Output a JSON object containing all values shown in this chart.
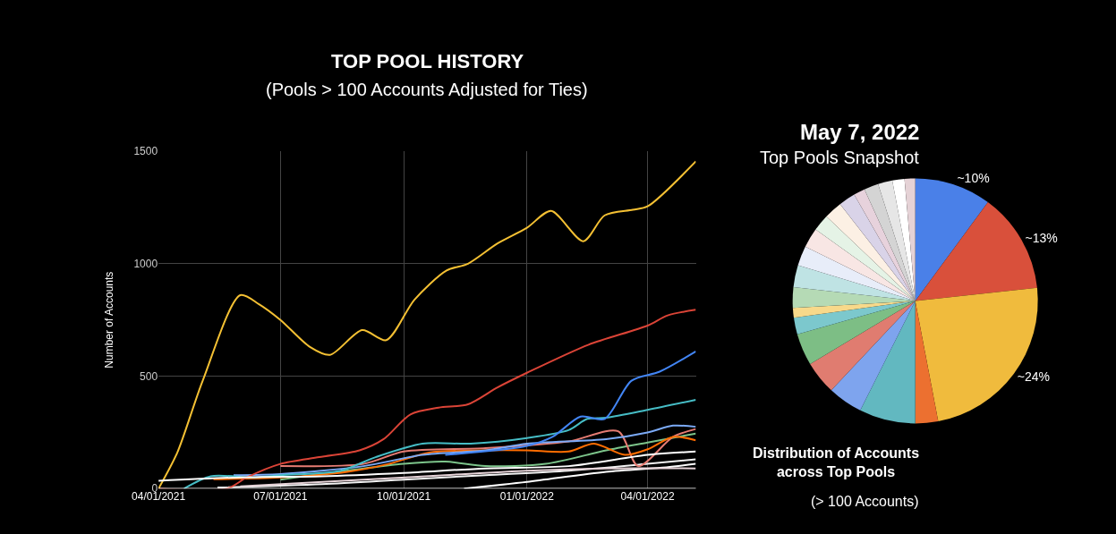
{
  "chart_data": [
    {
      "type": "line",
      "title": "TOP POOL HISTORY",
      "subtitle": "(Pools > 100 Accounts Adjusted for Ties)",
      "ylabel": "Number of Accounts",
      "xlim": [
        "2021-04-01",
        "2022-05-07"
      ],
      "xticks": [
        {
          "value": "2021-04-01",
          "label": "04/01/2021"
        },
        {
          "value": "2021-07-01",
          "label": "07/01/2021"
        },
        {
          "value": "2021-10-01",
          "label": "10/01/2021"
        },
        {
          "value": "2022-01-01",
          "label": "01/01/2022"
        },
        {
          "value": "2022-04-01",
          "label": "04/01/2022"
        }
      ],
      "ylim": [
        0,
        1500
      ],
      "yticks": [
        0,
        500,
        1000,
        1500
      ],
      "grid": true,
      "series": [
        {
          "color": "#f3f3f3",
          "x": [
            "2021-05-15",
            "2021-08-01",
            "2021-10-01",
            "2021-12-01",
            "2022-02-01",
            "2022-04-01",
            "2022-05-07"
          ],
          "values": [
            5,
            20,
            40,
            60,
            80,
            110,
            130
          ]
        },
        {
          "color": "#ffffff",
          "x": [
            "2021-11-15",
            "2022-01-01",
            "2022-03-01",
            "2022-04-15",
            "2022-05-07"
          ],
          "values": [
            0,
            30,
            75,
            95,
            110
          ]
        },
        {
          "color": "#e6d3d8",
          "x": [
            "2021-06-01",
            "2021-09-01",
            "2021-11-01",
            "2022-01-01",
            "2022-03-01",
            "2022-05-07"
          ],
          "values": [
            10,
            40,
            60,
            80,
            90,
            90
          ]
        },
        {
          "color": "#7cc48a",
          "x": [
            "2021-07-01",
            "2021-10-01",
            "2021-11-01",
            "2021-12-01",
            "2022-01-15",
            "2022-03-01",
            "2022-04-01",
            "2022-05-07"
          ],
          "values": [
            40,
            110,
            120,
            100,
            110,
            170,
            205,
            245
          ]
        },
        {
          "color": "#e67c73",
          "x": [
            "2021-07-01",
            "2021-09-01",
            "2021-10-01",
            "2021-12-01",
            "2022-02-01",
            "2022-03-10",
            "2022-03-25",
            "2022-04-20",
            "2022-05-07"
          ],
          "values": [
            100,
            110,
            165,
            180,
            210,
            255,
            100,
            230,
            265
          ]
        },
        {
          "color": "#ff6d01",
          "x": [
            "2021-05-12",
            "2021-07-01",
            "2021-08-20",
            "2021-09-20",
            "2021-10-20",
            "2021-12-01",
            "2022-01-01",
            "2022-02-01",
            "2022-02-20",
            "2022-03-15",
            "2022-04-01",
            "2022-04-20",
            "2022-05-07"
          ],
          "values": [
            42,
            50,
            75,
            110,
            160,
            170,
            170,
            165,
            200,
            150,
            175,
            230,
            215
          ]
        },
        {
          "color": "#7baaf7",
          "x": [
            "2021-05-27",
            "2021-07-01",
            "2021-09-01",
            "2021-10-15",
            "2021-12-01",
            "2022-01-01",
            "2022-03-01",
            "2022-04-01",
            "2022-04-20",
            "2022-05-07"
          ],
          "values": [
            60,
            65,
            100,
            150,
            170,
            200,
            220,
            250,
            280,
            275
          ]
        },
        {
          "color": "#46bdc6",
          "x": [
            "2021-04-20",
            "2021-05-10",
            "2021-06-10",
            "2021-07-01",
            "2021-08-15",
            "2021-09-10",
            "2021-10-15",
            "2021-11-20",
            "2022-01-01",
            "2022-02-01",
            "2022-02-15",
            "2022-03-01",
            "2022-04-01",
            "2022-05-07"
          ],
          "values": [
            0,
            55,
            50,
            60,
            80,
            140,
            200,
            200,
            225,
            260,
            310,
            315,
            350,
            395
          ]
        },
        {
          "color": "#4285f4",
          "x": [
            "2021-11-01",
            "2022-01-01",
            "2022-01-20",
            "2022-02-10",
            "2022-02-28",
            "2022-03-20",
            "2022-04-10",
            "2022-05-07"
          ],
          "values": [
            150,
            190,
            230,
            320,
            310,
            480,
            520,
            610
          ]
        },
        {
          "color": "#db4437",
          "x": [
            "2021-04-01",
            "2021-05-22",
            "2021-06-06",
            "2021-07-01",
            "2021-07-30",
            "2021-08-29",
            "2021-09-16",
            "2021-10-06",
            "2021-10-27",
            "2021-11-18",
            "2021-12-10",
            "2022-01-01",
            "2022-02-16",
            "2022-04-01",
            "2022-04-16",
            "2022-05-07"
          ],
          "values": [
            0,
            0,
            50,
            110,
            140,
            170,
            220,
            330,
            360,
            375,
            450,
            515,
            640,
            725,
            770,
            795
          ]
        },
        {
          "color": "#f4c033",
          "x": [
            "2021-04-01",
            "2021-04-15",
            "2021-05-04",
            "2021-06-01",
            "2021-06-15",
            "2021-07-01",
            "2021-07-23",
            "2021-08-07",
            "2021-08-31",
            "2021-09-18",
            "2021-10-09",
            "2021-11-02",
            "2021-11-18",
            "2021-12-10",
            "2022-01-01",
            "2022-01-19",
            "2022-02-12",
            "2022-02-28",
            "2022-03-21",
            "2022-04-01",
            "2022-05-07"
          ],
          "values": [
            0,
            160,
            480,
            860,
            820,
            750,
            630,
            595,
            705,
            660,
            840,
            970,
            1000,
            1090,
            1160,
            1235,
            1100,
            1215,
            1240,
            1255,
            1455
          ]
        },
        {
          "color": "#ffffff",
          "x": [
            "2021-04-01",
            "2021-06-01",
            "2021-08-01",
            "2021-10-01",
            "2021-12-01",
            "2022-02-01",
            "2022-04-01",
            "2022-05-07"
          ],
          "values": [
            35,
            50,
            55,
            70,
            90,
            100,
            150,
            165
          ]
        }
      ]
    },
    {
      "type": "pie",
      "title": "May 7, 2022",
      "subtitle": "Top Pools Snapshot",
      "annotations": [
        "Distribution of Accounts across Top Pools",
        "(> 100 Accounts)"
      ],
      "categories": [
        null,
        null,
        null,
        null,
        null,
        null,
        null,
        null,
        null,
        null,
        null,
        null,
        null,
        null,
        null,
        null,
        null,
        null,
        null,
        null,
        null,
        null
      ],
      "values": [
        10.1,
        13.2,
        23.7,
        3,
        7.4,
        4.6,
        4.4,
        4.2,
        2.2,
        1.3,
        2.7,
        2.9,
        2.6,
        2.6,
        2.2,
        2.4,
        2.2,
        1.5,
        1.9,
        1.9,
        1.6,
        1.4
      ],
      "value_labels": [
        "~10%",
        "~13%",
        "~24%",
        null,
        null,
        null,
        null,
        null,
        null,
        null,
        null,
        null,
        null,
        null,
        null,
        null,
        null,
        null,
        null,
        null,
        null,
        null
      ],
      "colors": [
        "#4a80e8",
        "#d9503b",
        "#f0bb3d",
        "#ec7030",
        "#62b8c0",
        "#7ea4ee",
        "#e07c70",
        "#7dbe85",
        "#7cc8cd",
        "#f8d98a",
        "#b5dab5",
        "#bfe3e4",
        "#e8edf9",
        "#f8e6e4",
        "#e5f3e6",
        "#fcf0e4",
        "#d9d3e8",
        "#e7d2dc",
        "#d4d4d4",
        "#e6e6e6",
        "#ffffff",
        "#e5d2d6"
      ]
    }
  ]
}
